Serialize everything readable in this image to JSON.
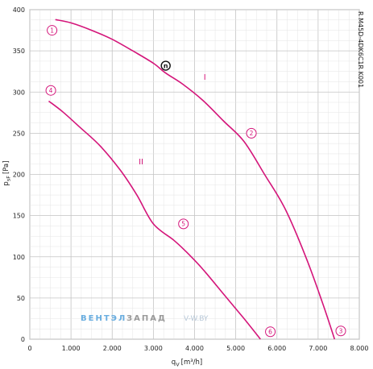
{
  "chart_data": {
    "type": "line",
    "xlabel_main": "q",
    "xlabel_sub": "V",
    "xlabel_unit": "[m³/h]",
    "ylabel_main": "p",
    "ylabel_sub": "sF",
    "ylabel_unit": "[Pa]",
    "model_label": "R M45D-4DK6C1R K001",
    "xlim": [
      0,
      8000
    ],
    "ylim": [
      0,
      400
    ],
    "x_ticks": [
      0,
      1000,
      2000,
      3000,
      4000,
      5000,
      6000,
      7000,
      8000
    ],
    "x_tick_labels": [
      "0",
      "1.000",
      "2.000",
      "3.000",
      "4.000",
      "5.000",
      "6.000",
      "7.000",
      "8.000"
    ],
    "y_ticks": [
      0,
      50,
      100,
      150,
      200,
      250,
      300,
      350,
      400
    ],
    "y_tick_labels": [
      "0",
      "50",
      "100",
      "150",
      "200",
      "250",
      "300",
      "350",
      "400"
    ],
    "grid": true,
    "series": [
      {
        "name": "I",
        "color": "#d4157a",
        "x": [
          620,
          1000,
          1500,
          2000,
          2500,
          3000,
          3300,
          3700,
          4200,
          4700,
          5200,
          5700,
          6200,
          6700,
          7100,
          7400
        ],
        "y": [
          388,
          384,
          375,
          364,
          350,
          335,
          323,
          310,
          290,
          265,
          240,
          200,
          158,
          100,
          45,
          0
        ]
      },
      {
        "name": "II",
        "color": "#d4157a",
        "x": [
          460,
          800,
          1200,
          1700,
          2200,
          2600,
          3000,
          3500,
          3800,
          4200,
          4700,
          5200,
          5600
        ],
        "y": [
          289,
          276,
          258,
          235,
          205,
          175,
          140,
          120,
          106,
          85,
          55,
          25,
          0
        ]
      }
    ],
    "curve_labels": [
      {
        "text": "I",
        "x": 4250,
        "y": 315
      },
      {
        "text": "II",
        "x": 2700,
        "y": 212
      }
    ],
    "markers": [
      {
        "text": "1",
        "x": 540,
        "y": 375
      },
      {
        "text": "2",
        "x": 5380,
        "y": 250
      },
      {
        "text": "3",
        "x": 7550,
        "y": 10
      },
      {
        "text": "4",
        "x": 510,
        "y": 302
      },
      {
        "text": "5",
        "x": 3730,
        "y": 140
      },
      {
        "text": "6",
        "x": 5840,
        "y": 9
      }
    ],
    "operating_point": {
      "text": "n",
      "x": 3300,
      "y": 332
    }
  },
  "watermark": {
    "part1": "ВЕНТЭЛ",
    "part2": "ЗАПАД",
    "part3": "V-W.BY"
  }
}
